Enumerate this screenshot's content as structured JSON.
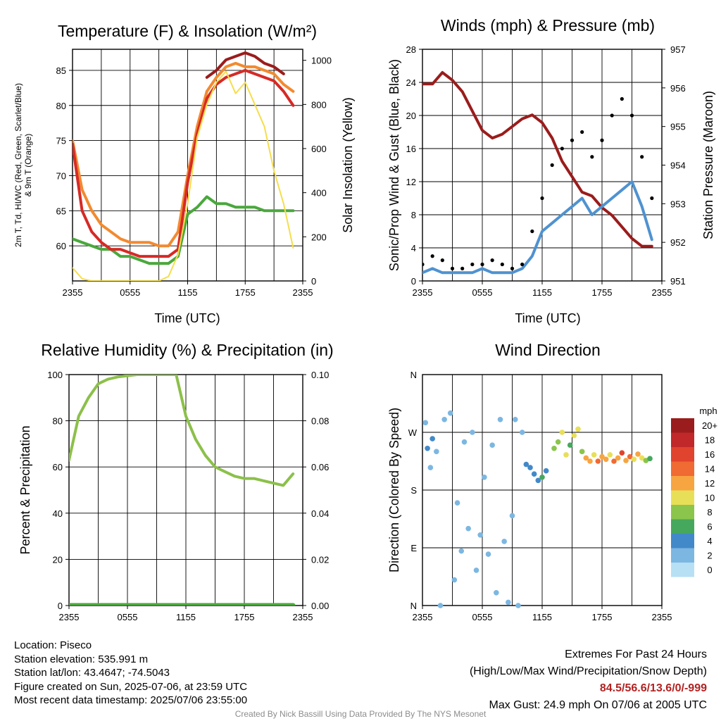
{
  "chart_data": [
    {
      "type": "line",
      "title": "Temperature (F) & Insolation (W/m²)",
      "xlabel": "Time (UTC)",
      "ylabel_left_lines": [
        "2m T, Td, HI/WC (Red, Green, Scarlet/Blue)",
        "& 9m T (Orange)"
      ],
      "ylabel_right": "Solar Insolation (Yellow)",
      "x_ticks": [
        "2355",
        "0555",
        "1155",
        "1755",
        "2355"
      ],
      "ylim_left": [
        55,
        88
      ],
      "yticks_left": [
        60,
        65,
        70,
        75,
        80,
        85
      ],
      "ylim_right": [
        0,
        1050
      ],
      "yticks_right": [
        0,
        200,
        400,
        600,
        800,
        1000
      ],
      "x_hours": [
        0,
        1,
        2,
        3,
        4,
        5,
        6,
        7,
        8,
        9,
        10,
        11,
        12,
        13,
        14,
        15,
        16,
        17,
        18,
        19,
        20,
        21,
        22,
        23
      ],
      "series": [
        {
          "key": "dewpoint",
          "color": "#4aa83c",
          "axis": "left",
          "values": [
            61,
            60.5,
            60,
            59.5,
            59.5,
            58.5,
            58.5,
            58,
            57.5,
            57.5,
            57.5,
            58.5,
            64.5,
            65.5,
            67,
            66,
            66,
            65.5,
            65.5,
            65.5,
            65,
            65,
            65,
            65
          ]
        },
        {
          "key": "temp_9m",
          "color": "#f28a30",
          "axis": "left",
          "values": [
            75,
            68,
            65,
            63,
            62,
            61,
            60.5,
            60.5,
            60.5,
            60,
            60,
            62,
            70,
            77,
            82,
            84,
            85.5,
            86,
            85.5,
            85.5,
            85,
            84.5,
            83,
            82
          ]
        },
        {
          "key": "heat_index",
          "color": "#9b1c1c",
          "axis": "left",
          "values": [
            null,
            null,
            null,
            null,
            null,
            null,
            null,
            null,
            null,
            null,
            null,
            null,
            null,
            null,
            84,
            85,
            86.5,
            87,
            87.5,
            87,
            86,
            85.5,
            84.5,
            null
          ]
        },
        {
          "key": "temp_2m",
          "color": "#d62a26",
          "axis": "left",
          "values": [
            74.5,
            65,
            62,
            60.5,
            59.5,
            59.5,
            59,
            58.5,
            58.5,
            58.5,
            58.5,
            59.5,
            69,
            76,
            81,
            83,
            84,
            84.5,
            85,
            84.5,
            84,
            83.5,
            82,
            80
          ]
        },
        {
          "key": "insolation",
          "color": "#f5de4d",
          "axis": "right",
          "values": [
            60,
            10,
            0,
            0,
            0,
            0,
            0,
            0,
            0,
            0,
            20,
            120,
            350,
            650,
            800,
            900,
            950,
            850,
            900,
            800,
            700,
            500,
            350,
            150
          ]
        }
      ]
    },
    {
      "type": "line",
      "title": "Winds (mph) & Pressure (mb)",
      "xlabel": "Time (UTC)",
      "ylabel_left": "Sonic/Prop Wind & Gust (Blue, Black)",
      "ylabel_right": "Station Pressure (Maroon)",
      "x_ticks": [
        "2355",
        "0555",
        "1155",
        "1755",
        "2355"
      ],
      "ylim_left": [
        0,
        28
      ],
      "yticks_left": [
        0,
        4,
        8,
        12,
        16,
        20,
        24,
        28
      ],
      "ylim_right": [
        951,
        957
      ],
      "yticks_right": [
        951,
        952,
        953,
        954,
        955,
        956,
        957
      ],
      "x_hours": [
        0,
        1,
        2,
        3,
        4,
        5,
        6,
        7,
        8,
        9,
        10,
        11,
        12,
        13,
        14,
        15,
        16,
        17,
        18,
        19,
        20,
        21,
        22,
        23
      ],
      "series": [
        {
          "key": "pressure",
          "color": "#9b1c1c",
          "axis": "right",
          "values": [
            956.1,
            956.1,
            956.4,
            956.2,
            955.9,
            955.4,
            954.9,
            954.7,
            954.8,
            955.0,
            955.2,
            955.3,
            955.1,
            954.7,
            954.1,
            953.7,
            953.3,
            953.2,
            952.9,
            952.7,
            952.4,
            952.1,
            951.9,
            951.9
          ]
        },
        {
          "key": "wind",
          "color": "#4f92d0",
          "axis": "left",
          "values": [
            1,
            1.5,
            1,
            1,
            1,
            1,
            1.5,
            1,
            1,
            1,
            1.5,
            3,
            6,
            7,
            8,
            9,
            10,
            8,
            9,
            10,
            11,
            12,
            9,
            5
          ]
        },
        {
          "key": "gust",
          "color": "#000000",
          "axis": "left",
          "kind": "points",
          "values": [
            2,
            3,
            2.5,
            1.5,
            1.5,
            2,
            2,
            2.5,
            2,
            1.5,
            2,
            6,
            10,
            14,
            16,
            17,
            18,
            15,
            17,
            20,
            22,
            20,
            15,
            10
          ]
        }
      ]
    },
    {
      "type": "line",
      "title": "Relative Humidity (%) & Precipitation (in)",
      "xlabel": "",
      "ylabel_left": "Percent & Precipitation",
      "x_ticks": [
        "2355",
        "0555",
        "1155",
        "1755",
        "2355"
      ],
      "ylim_left": [
        0,
        100
      ],
      "yticks_left": [
        0,
        20,
        40,
        60,
        80,
        100
      ],
      "ylim_right": [
        0,
        0.1
      ],
      "yticks_right_labels": [
        "0.00",
        "0.02",
        "0.04",
        "0.06",
        "0.08",
        "0.10"
      ],
      "x_hours": [
        0,
        1,
        2,
        3,
        4,
        5,
        6,
        7,
        8,
        9,
        10,
        11,
        12,
        13,
        14,
        15,
        16,
        17,
        18,
        19,
        20,
        21,
        22,
        23
      ],
      "series": [
        {
          "key": "rh",
          "color": "#8cc04a",
          "axis": "left",
          "values": [
            63,
            82,
            90,
            96,
            98,
            99,
            99.5,
            100,
            100,
            100,
            100,
            100,
            82,
            72,
            65,
            60,
            58,
            56,
            55,
            55,
            54,
            53,
            52,
            57
          ]
        },
        {
          "key": "precip",
          "color": "#4aa83c",
          "axis": "left",
          "values": [
            0,
            0,
            0,
            0,
            0,
            0,
            0,
            0,
            0,
            0,
            0,
            0,
            0,
            0,
            0,
            0,
            0,
            0,
            0,
            0,
            0,
            0,
            0,
            0
          ]
        }
      ]
    },
    {
      "type": "scatter",
      "title": "Wind Direction",
      "xlabel": "",
      "ylabel_left": "Direction (Colored By Speed)",
      "x_ticks": [
        "2355",
        "0555",
        "1155",
        "1755",
        "2355"
      ],
      "ylim_left": [
        0,
        360
      ],
      "ytick_labels": [
        "N",
        "E",
        "S",
        "W",
        "N"
      ],
      "colorbar": {
        "unit": "mph",
        "labels": [
          "20+",
          "18",
          "16",
          "14",
          "12",
          "10",
          "8",
          "6",
          "4",
          "2",
          "0"
        ],
        "colors": [
          "#9b1c1c",
          "#c0282a",
          "#e0432e",
          "#f06a33",
          "#f7a541",
          "#e8df58",
          "#8bc54b",
          "#46a85d",
          "#4289c9",
          "#7cb7e2",
          "#b7e0f4"
        ]
      },
      "points": [
        {
          "x": 0.3,
          "y": 285,
          "speed": 2
        },
        {
          "x": 0.5,
          "y": 245,
          "speed": 4
        },
        {
          "x": 0.8,
          "y": 215,
          "speed": 2
        },
        {
          "x": 1.0,
          "y": 260,
          "speed": 4
        },
        {
          "x": 1.4,
          "y": 240,
          "speed": 2
        },
        {
          "x": 1.8,
          "y": 0,
          "speed": 1
        },
        {
          "x": 2.2,
          "y": 290,
          "speed": 1
        },
        {
          "x": 2.8,
          "y": 300,
          "speed": 1
        },
        {
          "x": 3.2,
          "y": 40,
          "speed": 1
        },
        {
          "x": 3.5,
          "y": 160,
          "speed": 1
        },
        {
          "x": 3.9,
          "y": 85,
          "speed": 2
        },
        {
          "x": 4.2,
          "y": 255,
          "speed": 1
        },
        {
          "x": 4.6,
          "y": 120,
          "speed": 1
        },
        {
          "x": 5.0,
          "y": 270,
          "speed": 1
        },
        {
          "x": 5.4,
          "y": 55,
          "speed": 1
        },
        {
          "x": 5.8,
          "y": 110,
          "speed": 1
        },
        {
          "x": 6.2,
          "y": 200,
          "speed": 1
        },
        {
          "x": 6.6,
          "y": 80,
          "speed": 1
        },
        {
          "x": 7.0,
          "y": 250,
          "speed": 1
        },
        {
          "x": 7.4,
          "y": 20,
          "speed": 1
        },
        {
          "x": 7.8,
          "y": 290,
          "speed": 1
        },
        {
          "x": 8.2,
          "y": 100,
          "speed": 1
        },
        {
          "x": 8.6,
          "y": 5,
          "speed": 1
        },
        {
          "x": 9.0,
          "y": 140,
          "speed": 1
        },
        {
          "x": 9.3,
          "y": 290,
          "speed": 1
        },
        {
          "x": 9.6,
          "y": 0,
          "speed": 1
        },
        {
          "x": 10.0,
          "y": 270,
          "speed": 1
        },
        {
          "x": 10.4,
          "y": 220,
          "speed": 3
        },
        {
          "x": 10.8,
          "y": 215,
          "speed": 4
        },
        {
          "x": 11.2,
          "y": 205,
          "speed": 4
        },
        {
          "x": 11.6,
          "y": 195,
          "speed": 4
        },
        {
          "x": 12.0,
          "y": 200,
          "speed": 5
        },
        {
          "x": 12.4,
          "y": 210,
          "speed": 4
        },
        {
          "x": 13.2,
          "y": 245,
          "speed": 7
        },
        {
          "x": 13.6,
          "y": 255,
          "speed": 8
        },
        {
          "x": 14.0,
          "y": 270,
          "speed": 9
        },
        {
          "x": 14.4,
          "y": 235,
          "speed": 10
        },
        {
          "x": 14.8,
          "y": 250,
          "speed": 6
        },
        {
          "x": 15.2,
          "y": 265,
          "speed": 9
        },
        {
          "x": 15.6,
          "y": 275,
          "speed": 10
        },
        {
          "x": 16.0,
          "y": 240,
          "speed": 8
        },
        {
          "x": 16.4,
          "y": 230,
          "speed": 11
        },
        {
          "x": 16.8,
          "y": 225,
          "speed": 12
        },
        {
          "x": 17.2,
          "y": 235,
          "speed": 10
        },
        {
          "x": 17.6,
          "y": 225,
          "speed": 13
        },
        {
          "x": 18.0,
          "y": 232,
          "speed": 11
        },
        {
          "x": 18.4,
          "y": 228,
          "speed": 12
        },
        {
          "x": 18.8,
          "y": 235,
          "speed": 10
        },
        {
          "x": 19.2,
          "y": 225,
          "speed": 14
        },
        {
          "x": 19.6,
          "y": 230,
          "speed": 12
        },
        {
          "x": 20.0,
          "y": 238,
          "speed": 15
        },
        {
          "x": 20.4,
          "y": 226,
          "speed": 11
        },
        {
          "x": 20.8,
          "y": 232,
          "speed": 13
        },
        {
          "x": 21.2,
          "y": 228,
          "speed": 9
        },
        {
          "x": 21.6,
          "y": 236,
          "speed": 12
        },
        {
          "x": 22.0,
          "y": 230,
          "speed": 10
        },
        {
          "x": 22.4,
          "y": 226,
          "speed": 7
        },
        {
          "x": 22.8,
          "y": 229,
          "speed": 6
        }
      ]
    }
  ],
  "info": {
    "location": "Location: Piseco",
    "elevation": "Station elevation: 535.991 m",
    "latlon": "Station lat/lon: 43.4647; -74.5043",
    "created": "Figure created on Sun, 2025-07-06, at 23:59 UTC",
    "recent": "Most recent data timestamp: 2025/07/06 23:55:00"
  },
  "extremes": {
    "heading": "Extremes For Past 24 Hours",
    "legend": "(High/Low/Max Wind/Precipitation/Snow Depth)",
    "values": "84.5/56.6/13.6/0/-999",
    "gust": "Max Gust: 24.9 mph On 07/06 at 2005 UTC"
  },
  "credit": "Created By Nick Bassill Using Data Provided By The NYS Mesonet"
}
